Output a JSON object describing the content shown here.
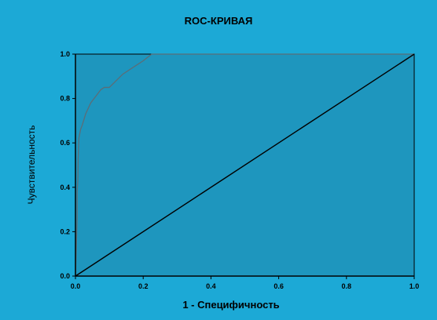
{
  "chart_data": {
    "type": "line",
    "title": "ROC-КРИВАЯ",
    "xlabel": "1 - Специфичность",
    "ylabel": "Чувствительность",
    "xlim": [
      0.0,
      1.0
    ],
    "ylim": [
      0.0,
      1.0
    ],
    "xticks": [
      "0.0",
      "0.2",
      "0.4",
      "0.6",
      "0.8",
      "1.0"
    ],
    "yticks": [
      "0.0",
      "0.2",
      "0.4",
      "0.6",
      "0.8",
      "1.0"
    ],
    "grid": false,
    "series": [
      {
        "points": [
          [
            0.0,
            0.0
          ],
          [
            0.005,
            0.26
          ],
          [
            0.005,
            0.38
          ],
          [
            0.007,
            0.43
          ],
          [
            0.008,
            0.53
          ],
          [
            0.01,
            0.62
          ],
          [
            0.015,
            0.66
          ],
          [
            0.02,
            0.68
          ],
          [
            0.03,
            0.73
          ],
          [
            0.045,
            0.78
          ],
          [
            0.06,
            0.81
          ],
          [
            0.075,
            0.84
          ],
          [
            0.085,
            0.85
          ],
          [
            0.1,
            0.85
          ],
          [
            0.12,
            0.88
          ],
          [
            0.14,
            0.91
          ],
          [
            0.17,
            0.94
          ],
          [
            0.2,
            0.97
          ],
          [
            0.225,
            1.0
          ],
          [
            1.0,
            1.0
          ]
        ]
      },
      {
        "points": [
          [
            0.0,
            0.0
          ],
          [
            1.0,
            1.0
          ]
        ]
      }
    ],
    "colors": {
      "background": "#1ca9d6",
      "plot_area": "#1e96be",
      "roc_line": "#5a6e78",
      "diagonal": "#000000"
    }
  }
}
